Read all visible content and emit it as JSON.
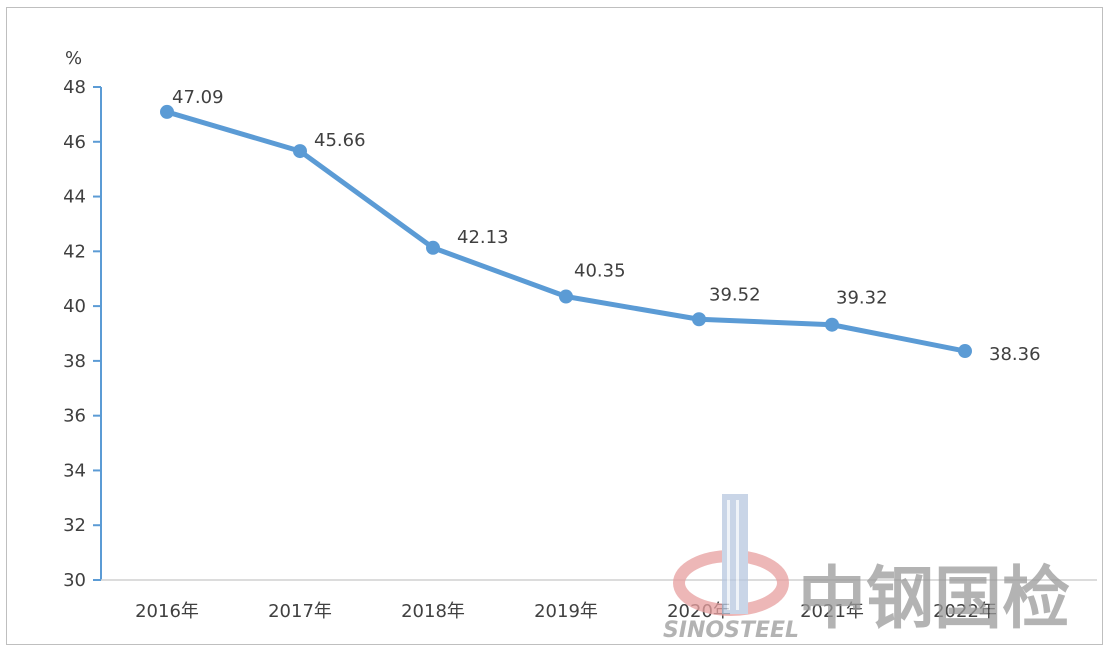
{
  "chart_data": {
    "type": "line",
    "ylabel": "%",
    "ylim": [
      30,
      48
    ],
    "yticks": [
      30,
      32,
      34,
      36,
      38,
      40,
      42,
      44,
      46,
      48
    ],
    "categories": [
      "2016年",
      "2017年",
      "2018年",
      "2019年",
      "2020年",
      "2021年",
      "2022年"
    ],
    "series": [
      {
        "values": [
          47.09,
          45.66,
          42.13,
          40.35,
          39.52,
          39.32,
          38.36
        ]
      }
    ],
    "data_labels": [
      "47.09",
      "45.66",
      "42.13",
      "40.35",
      "39.52",
      "39.32",
      "38.36"
    ],
    "grid": false,
    "legend": "none",
    "colors": {
      "line": "#5b9bd5",
      "axis": "#5b9bd5",
      "text": "#404040"
    }
  },
  "watermark": {
    "text_cn": "中钢国检",
    "text_en": "SINOSTEEL",
    "colors": {
      "text": "#9a9a9a",
      "logo_red": "#e8a0a0",
      "logo_blue": "#b8c8e0"
    }
  }
}
